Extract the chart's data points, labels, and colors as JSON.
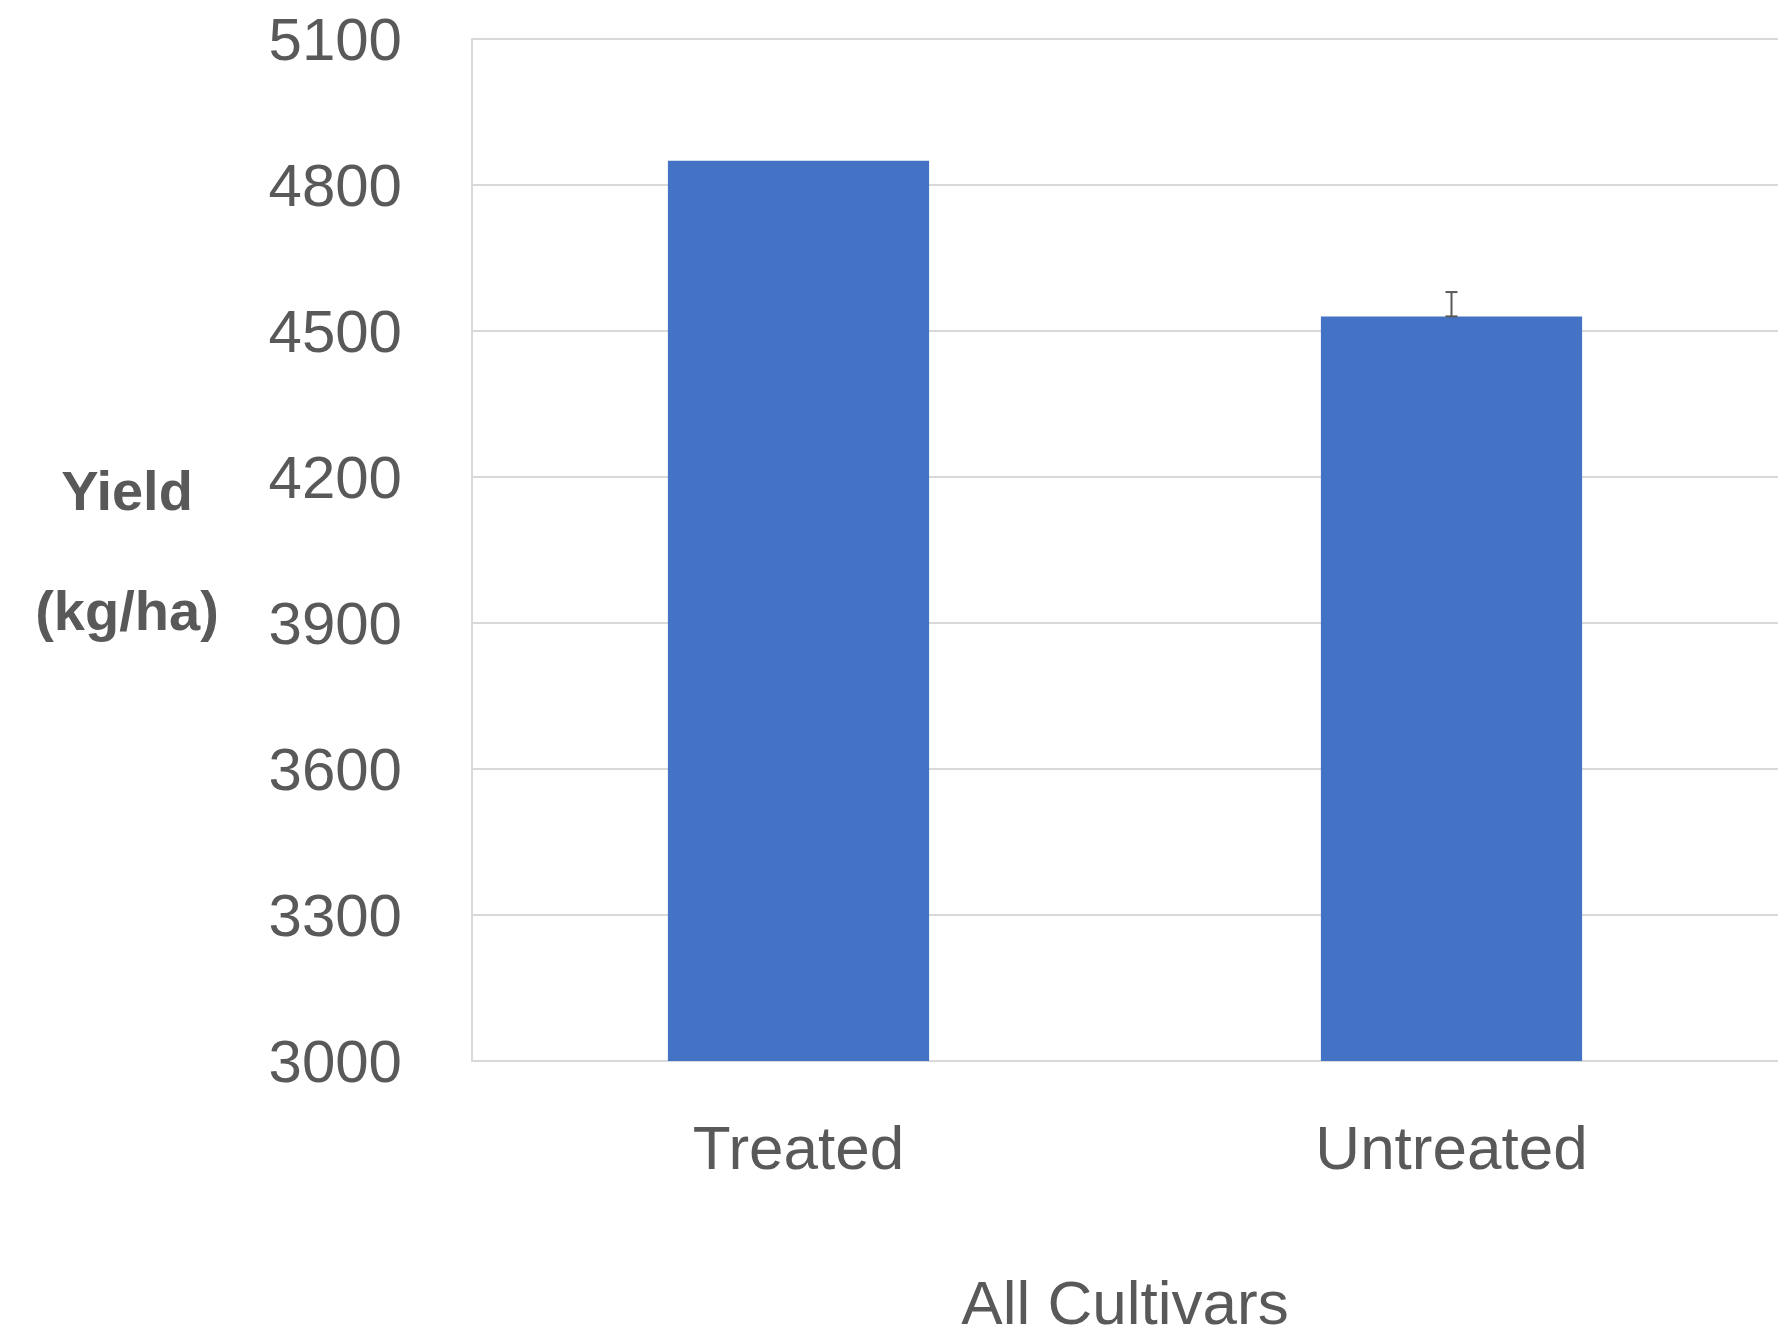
{
  "chart_data": {
    "type": "bar",
    "categories": [
      "Treated",
      "Untreated"
    ],
    "values": [
      4850,
      4530
    ],
    "errors": [
      null,
      [
        4530,
        4580
      ]
    ],
    "color": "#4472c4",
    "xlabel": "All Cultivars",
    "ylabel": "Yield (kg/ha)",
    "ylim": [
      3000,
      5100
    ],
    "yticks": [
      3000,
      3300,
      3600,
      3900,
      4200,
      4500,
      4800,
      5100
    ],
    "grid": "y"
  }
}
